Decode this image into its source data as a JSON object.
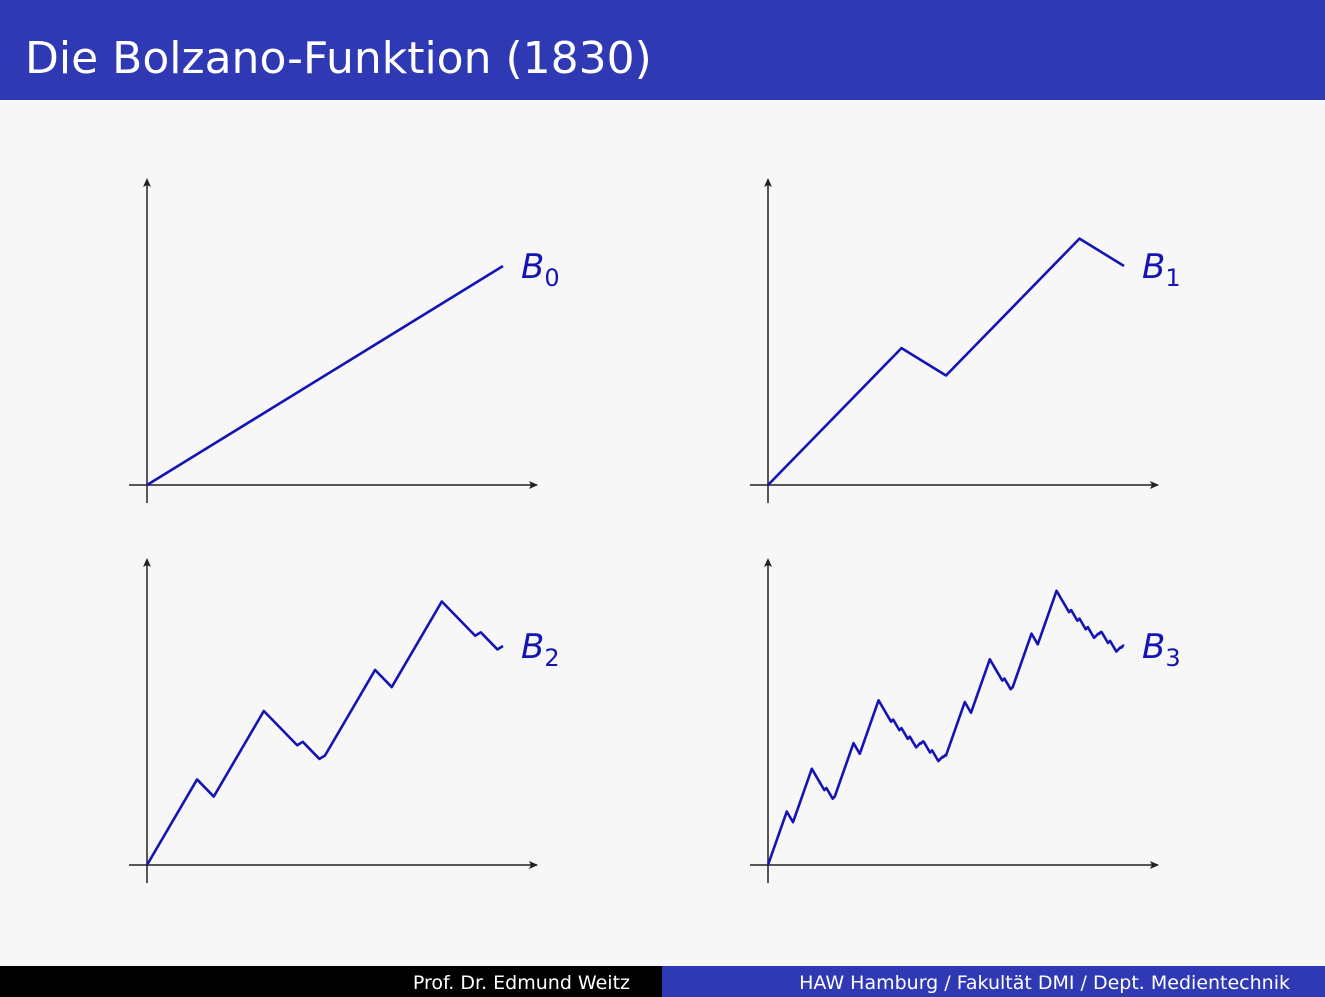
{
  "header": {
    "title": "Die Bolzano-Funktion (1830)"
  },
  "footer": {
    "author": "Prof. Dr. Edmund Weitz",
    "affiliation": "HAW Hamburg / Fakultät DMI / Dept. Medientechnik"
  },
  "chart_data": [
    {
      "type": "line",
      "label": {
        "base": "B",
        "sub": "0"
      },
      "color": "#1414b4",
      "x": [
        0,
        1
      ],
      "values": [
        0,
        1
      ]
    },
    {
      "type": "line",
      "label": {
        "base": "B",
        "sub": "1"
      },
      "color": "#1414b4",
      "x": [
        0,
        0.375,
        0.5,
        0.875,
        1
      ],
      "values": [
        0,
        0.625,
        0.5,
        1.125,
        1
      ]
    },
    {
      "type": "line",
      "label": {
        "base": "B",
        "sub": "2"
      },
      "color": "#1414b4",
      "x": [
        0,
        0.140625,
        0.1875,
        0.328125,
        0.375,
        0.421875,
        0.4375,
        0.484375,
        0.5,
        0.640625,
        0.6875,
        0.828125,
        0.875,
        0.921875,
        0.9375,
        0.984375,
        1
      ],
      "values": [
        0,
        0.390625,
        0.3125,
        0.703125,
        0.625,
        0.546875,
        0.5625,
        0.484375,
        0.5,
        0.890625,
        0.8125,
        1.203125,
        1.125,
        1.046875,
        1.0625,
        0.984375,
        1
      ]
    },
    {
      "type": "line",
      "label": {
        "base": "B",
        "sub": "3"
      },
      "color": "#1414b4",
      "x": [
        0,
        0.052734375,
        0.0703125,
        0.123046875,
        0.140625,
        0.158203125,
        0.1640625,
        0.181640625,
        0.1875,
        0.240234375,
        0.2578125,
        0.310546875,
        0.328125,
        0.345703125,
        0.3515625,
        0.369140625,
        0.375,
        0.392578125,
        0.3984375,
        0.416015625,
        0.421875,
        0.427734375,
        0.4296875,
        0.435546875,
        0.4375,
        0.455078125,
        0.4609375,
        0.478515625,
        0.484375,
        0.490234375,
        0.4921875,
        0.498046875,
        0.5,
        0.552734375,
        0.5703125,
        0.623046875,
        0.640625,
        0.658203125,
        0.6640625,
        0.681640625,
        0.6875,
        0.740234375,
        0.7578125,
        0.810546875,
        0.828125,
        0.845703125,
        0.8515625,
        0.869140625,
        0.875,
        0.892578125,
        0.8984375,
        0.916015625,
        0.921875,
        0.927734375,
        0.9296875,
        0.935546875,
        0.9375,
        0.955078125,
        0.9609375,
        0.978515625,
        0.984375,
        0.990234375,
        0.9921875,
        0.998046875,
        1
      ],
      "values": [
        0,
        0.244140625,
        0.1953125,
        0.439453125,
        0.390625,
        0.341796875,
        0.3515625,
        0.302734375,
        0.3125,
        0.556640625,
        0.5078125,
        0.751953125,
        0.703125,
        0.654296875,
        0.6640625,
        0.615234375,
        0.625,
        0.576171875,
        0.5859375,
        0.537109375,
        0.546875,
        0.556640625,
        0.5546875,
        0.564453125,
        0.5625,
        0.513671875,
        0.5234375,
        0.474609375,
        0.484375,
        0.494140625,
        0.4921875,
        0.501953125,
        0.5,
        0.744140625,
        0.6953125,
        0.939453125,
        0.890625,
        0.841796875,
        0.8515625,
        0.802734375,
        0.8125,
        1.056640625,
        1.0078125,
        1.251953125,
        1.203125,
        1.154296875,
        1.1640625,
        1.115234375,
        1.125,
        1.076171875,
        1.0859375,
        1.037109375,
        1.046875,
        1.056640625,
        1.0546875,
        1.064453125,
        1.0625,
        1.013671875,
        1.0234375,
        0.974609375,
        0.984375,
        0.994140625,
        0.9921875,
        1.001953125,
        1
      ]
    }
  ]
}
